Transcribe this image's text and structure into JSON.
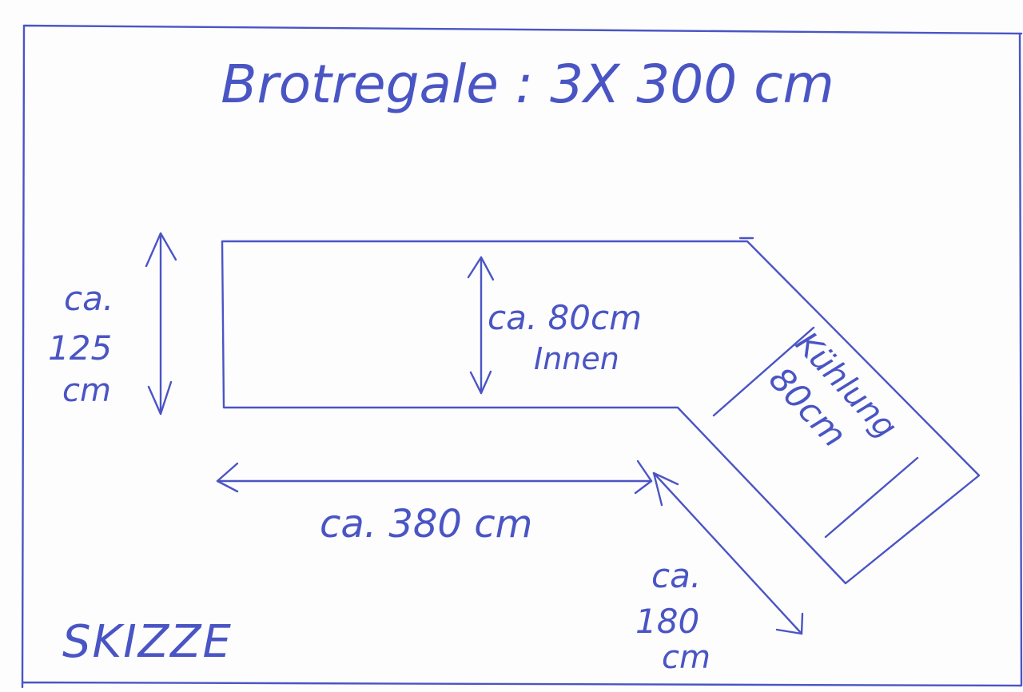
{
  "sketch": {
    "title": "Brotregale : 3X 300 cm",
    "ink_color": "#4a55c4",
    "paper_color": "#fdfdfe",
    "height_label": [
      "ca.",
      "125",
      "cm"
    ],
    "inner_depth_label": [
      "ca. 80cm",
      "Innen"
    ],
    "length_label": "ca. 380 cm",
    "angled_length_label": [
      "ca.",
      "180",
      "cm"
    ],
    "cooling_label": [
      "Kühlung",
      "80cm"
    ],
    "stamp": "SKIZZE"
  }
}
